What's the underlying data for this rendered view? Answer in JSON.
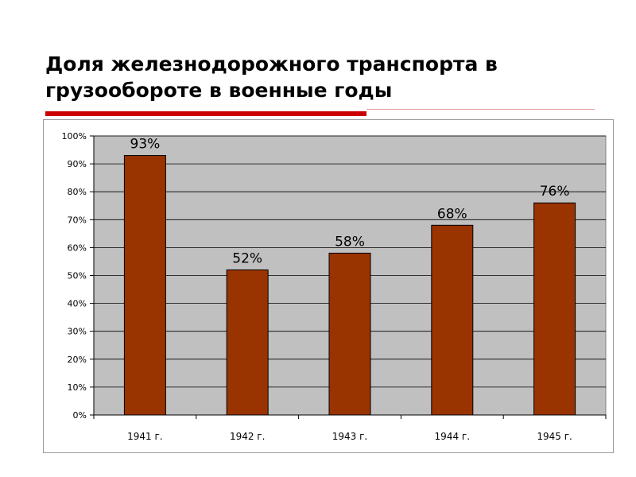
{
  "slide": {
    "title": "Доля железнодорожного транспорта в грузообороте в военные годы"
  },
  "colors": {
    "bar": "#993300",
    "plot_bg": "#c0c0c0",
    "accent_rule": "#cc0000"
  },
  "chart_data": {
    "type": "bar",
    "title": "",
    "xlabel": "",
    "ylabel": "",
    "categories": [
      "1941 г.",
      "1942 г.",
      "1943 г.",
      "1944 г.",
      "1945 г."
    ],
    "values": [
      93,
      52,
      58,
      68,
      76
    ],
    "data_labels": [
      "93%",
      "52%",
      "58%",
      "68%",
      "76%"
    ],
    "ylim": [
      0,
      100
    ],
    "yticks": [
      0,
      10,
      20,
      30,
      40,
      50,
      60,
      70,
      80,
      90,
      100
    ],
    "ytick_labels": [
      "0%",
      "10%",
      "20%",
      "30%",
      "40%",
      "50%",
      "60%",
      "70%",
      "80%",
      "90%",
      "100%"
    ],
    "grid": true,
    "legend": "none"
  }
}
